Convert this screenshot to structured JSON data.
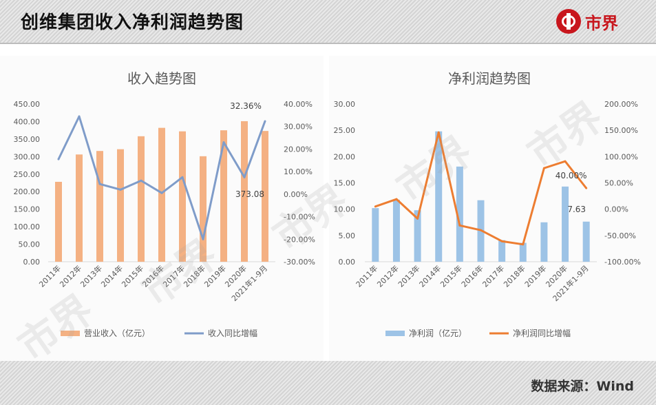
{
  "header": {
    "title": "创维集团收入净利润趋势图",
    "logo_text": "市界"
  },
  "footer": {
    "source": "数据来源：Wind"
  },
  "watermark": "市界",
  "colors": {
    "bar_left": "#f4b183",
    "line_left": "#7f9cc9",
    "bar_right": "#9dc3e6",
    "line_right": "#ed7d31"
  },
  "chart_data": [
    {
      "type": "bar",
      "title": "收入趋势图",
      "categories": [
        "2011年",
        "2012年",
        "2013年",
        "2014年",
        "2015年",
        "2016年",
        "2017年",
        "2018年",
        "2019年",
        "2020年",
        "2021年1-9月"
      ],
      "series": [
        {
          "name": "营业收入（亿元）",
          "type": "bar",
          "axis": "left",
          "values": [
            228,
            306,
            316,
            321,
            358,
            382,
            372,
            301,
            375,
            401,
            373.08
          ]
        },
        {
          "name": "收入同比增幅",
          "type": "line",
          "axis": "right",
          "values": [
            15.5,
            34.5,
            4.5,
            2,
            6,
            0.5,
            7.5,
            -20,
            23,
            7.5,
            32.36
          ]
        }
      ],
      "left_axis": {
        "ylim": [
          0,
          450
        ],
        "ticks": [
          "0.00",
          "50.00",
          "100.00",
          "150.00",
          "200.00",
          "250.00",
          "300.00",
          "350.00",
          "400.00",
          "450.00"
        ]
      },
      "right_axis": {
        "ylim": [
          -30,
          40
        ],
        "ticks": [
          "-30.00%",
          "-20.00%",
          "-10.00%",
          "0.00%",
          "10.00%",
          "20.00%",
          "30.00%",
          "40.00%"
        ]
      },
      "annotations": {
        "last_bar": "373.08",
        "last_line": "32.36%"
      },
      "grid": false,
      "legend_position": "bottom"
    },
    {
      "type": "bar",
      "title": "净利润趋势图",
      "categories": [
        "2011年",
        "2012年",
        "2013年",
        "2014年",
        "2015年",
        "2016年",
        "2017年",
        "2018年",
        "2019年",
        "2020年",
        "2021年1-9月"
      ],
      "series": [
        {
          "name": "净利润（亿元）",
          "type": "bar",
          "axis": "left",
          "values": [
            10.2,
            11.8,
            9.8,
            24.8,
            18.1,
            11.7,
            4.1,
            3.6,
            7.5,
            14.3,
            7.63
          ]
        },
        {
          "name": "净利润同比增幅",
          "type": "line",
          "axis": "right",
          "values": [
            5,
            19,
            -18,
            146,
            -31,
            -40,
            -61,
            -67,
            78,
            91,
            40
          ]
        }
      ],
      "left_axis": {
        "ylim": [
          0,
          30
        ],
        "ticks": [
          "0.00",
          "5.00",
          "10.00",
          "15.00",
          "20.00",
          "25.00",
          "30.00"
        ]
      },
      "right_axis": {
        "ylim": [
          -100,
          200
        ],
        "ticks": [
          "-100.00%",
          "-50.00%",
          "0.00%",
          "50.00%",
          "100.00%",
          "150.00%",
          "200.00%"
        ]
      },
      "annotations": {
        "last_bar": "7.63",
        "last_line": "40.00%"
      },
      "grid": false,
      "legend_position": "bottom"
    }
  ]
}
